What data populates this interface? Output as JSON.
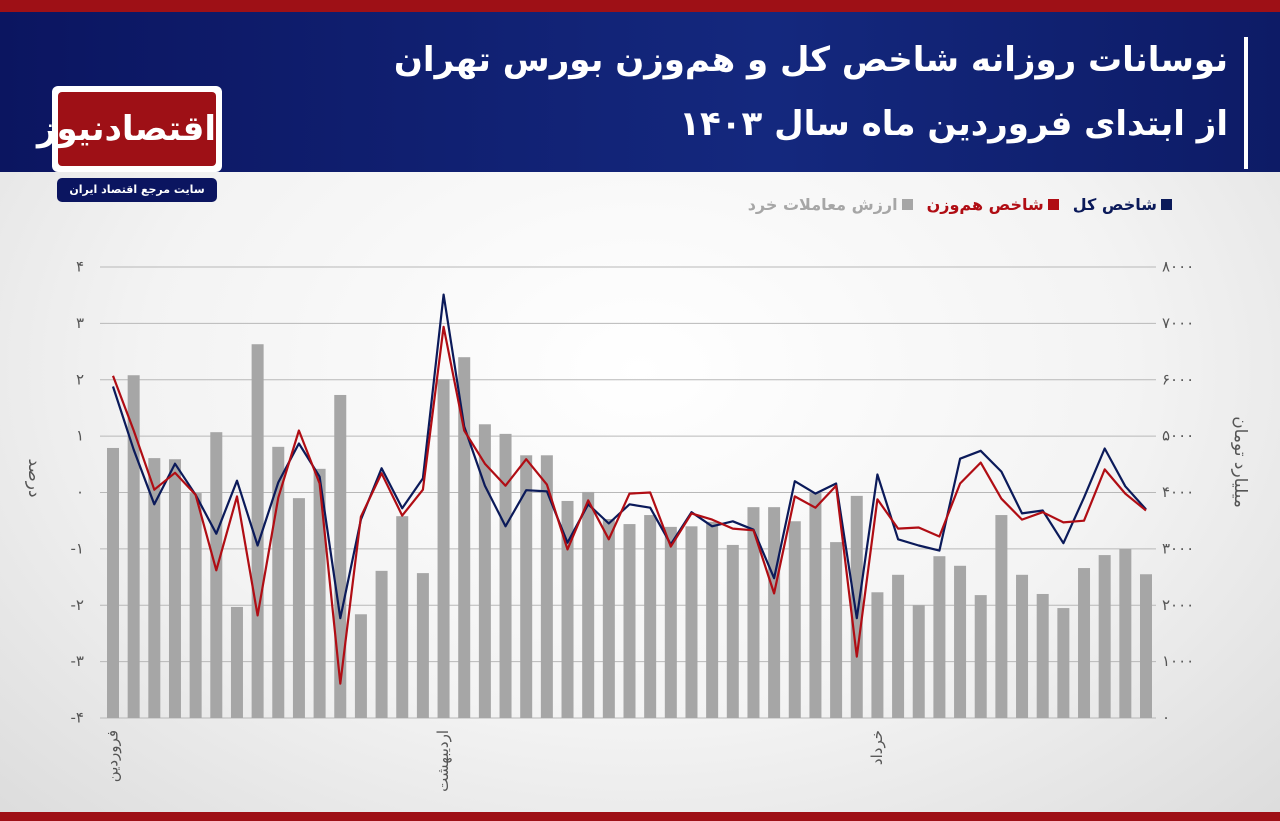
{
  "brand": {
    "logo": "اقتصادنیوز",
    "tagline": "سایت مرجع اقتصاد ایران"
  },
  "chart_data": {
    "type": "combo",
    "title": "نوسانات روزانه شاخص کل و هم‌وزن بورس تهران",
    "subtitle": "از ابتدای فروردین ماه سال ۱۴۰۳",
    "ylabel": "درصد",
    "y2label": "میلیارد تومان",
    "grid": true,
    "categories": [
      "فروردین",
      null,
      null,
      null,
      null,
      null,
      null,
      null,
      null,
      null,
      null,
      null,
      null,
      null,
      null,
      null,
      "اردیبهشت",
      null,
      null,
      null,
      null,
      null,
      null,
      null,
      null,
      null,
      null,
      null,
      null,
      null,
      null,
      null,
      null,
      null,
      null,
      null,
      null,
      "خرداد",
      null,
      null,
      null,
      null,
      null,
      null,
      null,
      null,
      null,
      null,
      null,
      null,
      null
    ],
    "ylim": [
      -4,
      4
    ],
    "yticks": [
      {
        "value": -4,
        "label": "-۴"
      },
      {
        "value": -3,
        "label": "-۳"
      },
      {
        "value": -2,
        "label": "-۲"
      },
      {
        "value": -1,
        "label": "-۱"
      },
      {
        "value": 0,
        "label": "۰"
      },
      {
        "value": 1,
        "label": "۱"
      },
      {
        "value": 2,
        "label": "۲"
      },
      {
        "value": 3,
        "label": "۳"
      },
      {
        "value": 4,
        "label": "۴"
      }
    ],
    "y2lim": [
      0,
      8000
    ],
    "y2ticks": [
      {
        "value": 0,
        "label": "۰"
      },
      {
        "value": 1000,
        "label": "۱۰۰۰"
      },
      {
        "value": 2000,
        "label": "۲۰۰۰"
      },
      {
        "value": 3000,
        "label": "۳۰۰۰"
      },
      {
        "value": 4000,
        "label": "۴۰۰۰"
      },
      {
        "value": 5000,
        "label": "۵۰۰۰"
      },
      {
        "value": 6000,
        "label": "۶۰۰۰"
      },
      {
        "value": 7000,
        "label": "۷۰۰۰"
      },
      {
        "value": 8000,
        "label": "۸۰۰۰"
      }
    ],
    "series": [
      {
        "name": "شاخص کل",
        "type": "line",
        "color": "#0b1a5a",
        "values": [
          1.88,
          0.76,
          -0.21,
          0.51,
          -0.04,
          -0.73,
          0.21,
          -0.94,
          0.18,
          0.87,
          0.28,
          -2.23,
          -0.48,
          0.43,
          -0.28,
          0.25,
          3.51,
          1.17,
          0.12,
          -0.6,
          0.04,
          0.02,
          -0.89,
          -0.21,
          -0.55,
          -0.21,
          -0.27,
          -0.92,
          -0.35,
          -0.6,
          -0.51,
          -0.66,
          -1.52,
          0.2,
          -0.02,
          0.16,
          -2.23,
          0.32,
          -0.83,
          -0.94,
          -1.03,
          0.6,
          0.74,
          0.37,
          -0.37,
          -0.32,
          -0.9,
          -0.09,
          0.78,
          0.11,
          -0.3
        ]
      },
      {
        "name": "شاخص هم‌وزن",
        "type": "line",
        "color": "#b00d14",
        "values": [
          2.07,
          1.1,
          0.05,
          0.35,
          -0.04,
          -1.38,
          -0.07,
          -2.18,
          -0.09,
          1.1,
          0.16,
          -3.39,
          -0.43,
          0.34,
          -0.41,
          0.05,
          2.94,
          1.1,
          0.51,
          0.12,
          0.59,
          0.14,
          -1.01,
          -0.14,
          -0.83,
          -0.02,
          0.0,
          -0.96,
          -0.37,
          -0.48,
          -0.64,
          -0.67,
          -1.79,
          -0.07,
          -0.27,
          0.12,
          -2.91,
          -0.12,
          -0.64,
          -0.62,
          -0.78,
          0.16,
          0.53,
          -0.11,
          -0.48,
          -0.35,
          -0.53,
          -0.5,
          0.41,
          -0.02,
          -0.32
        ]
      },
      {
        "name": "ارزش معاملات خرد",
        "type": "bar",
        "axis": "y2",
        "color": "#a6a6a6",
        "values": [
          4790,
          6080,
          4610,
          4590,
          3990,
          5070,
          1970,
          6630,
          4810,
          3900,
          4420,
          5730,
          1840,
          2610,
          3580,
          2570,
          6010,
          6400,
          5210,
          5040,
          4660,
          4660,
          3850,
          4010,
          3530,
          3440,
          3600,
          3390,
          3400,
          3480,
          3070,
          3740,
          3740,
          3490,
          3990,
          3120,
          3940,
          2230,
          2540,
          2000,
          2870,
          2700,
          2180,
          3600,
          2540,
          2200,
          1950,
          2660,
          2890,
          3000,
          2550
        ]
      }
    ]
  }
}
